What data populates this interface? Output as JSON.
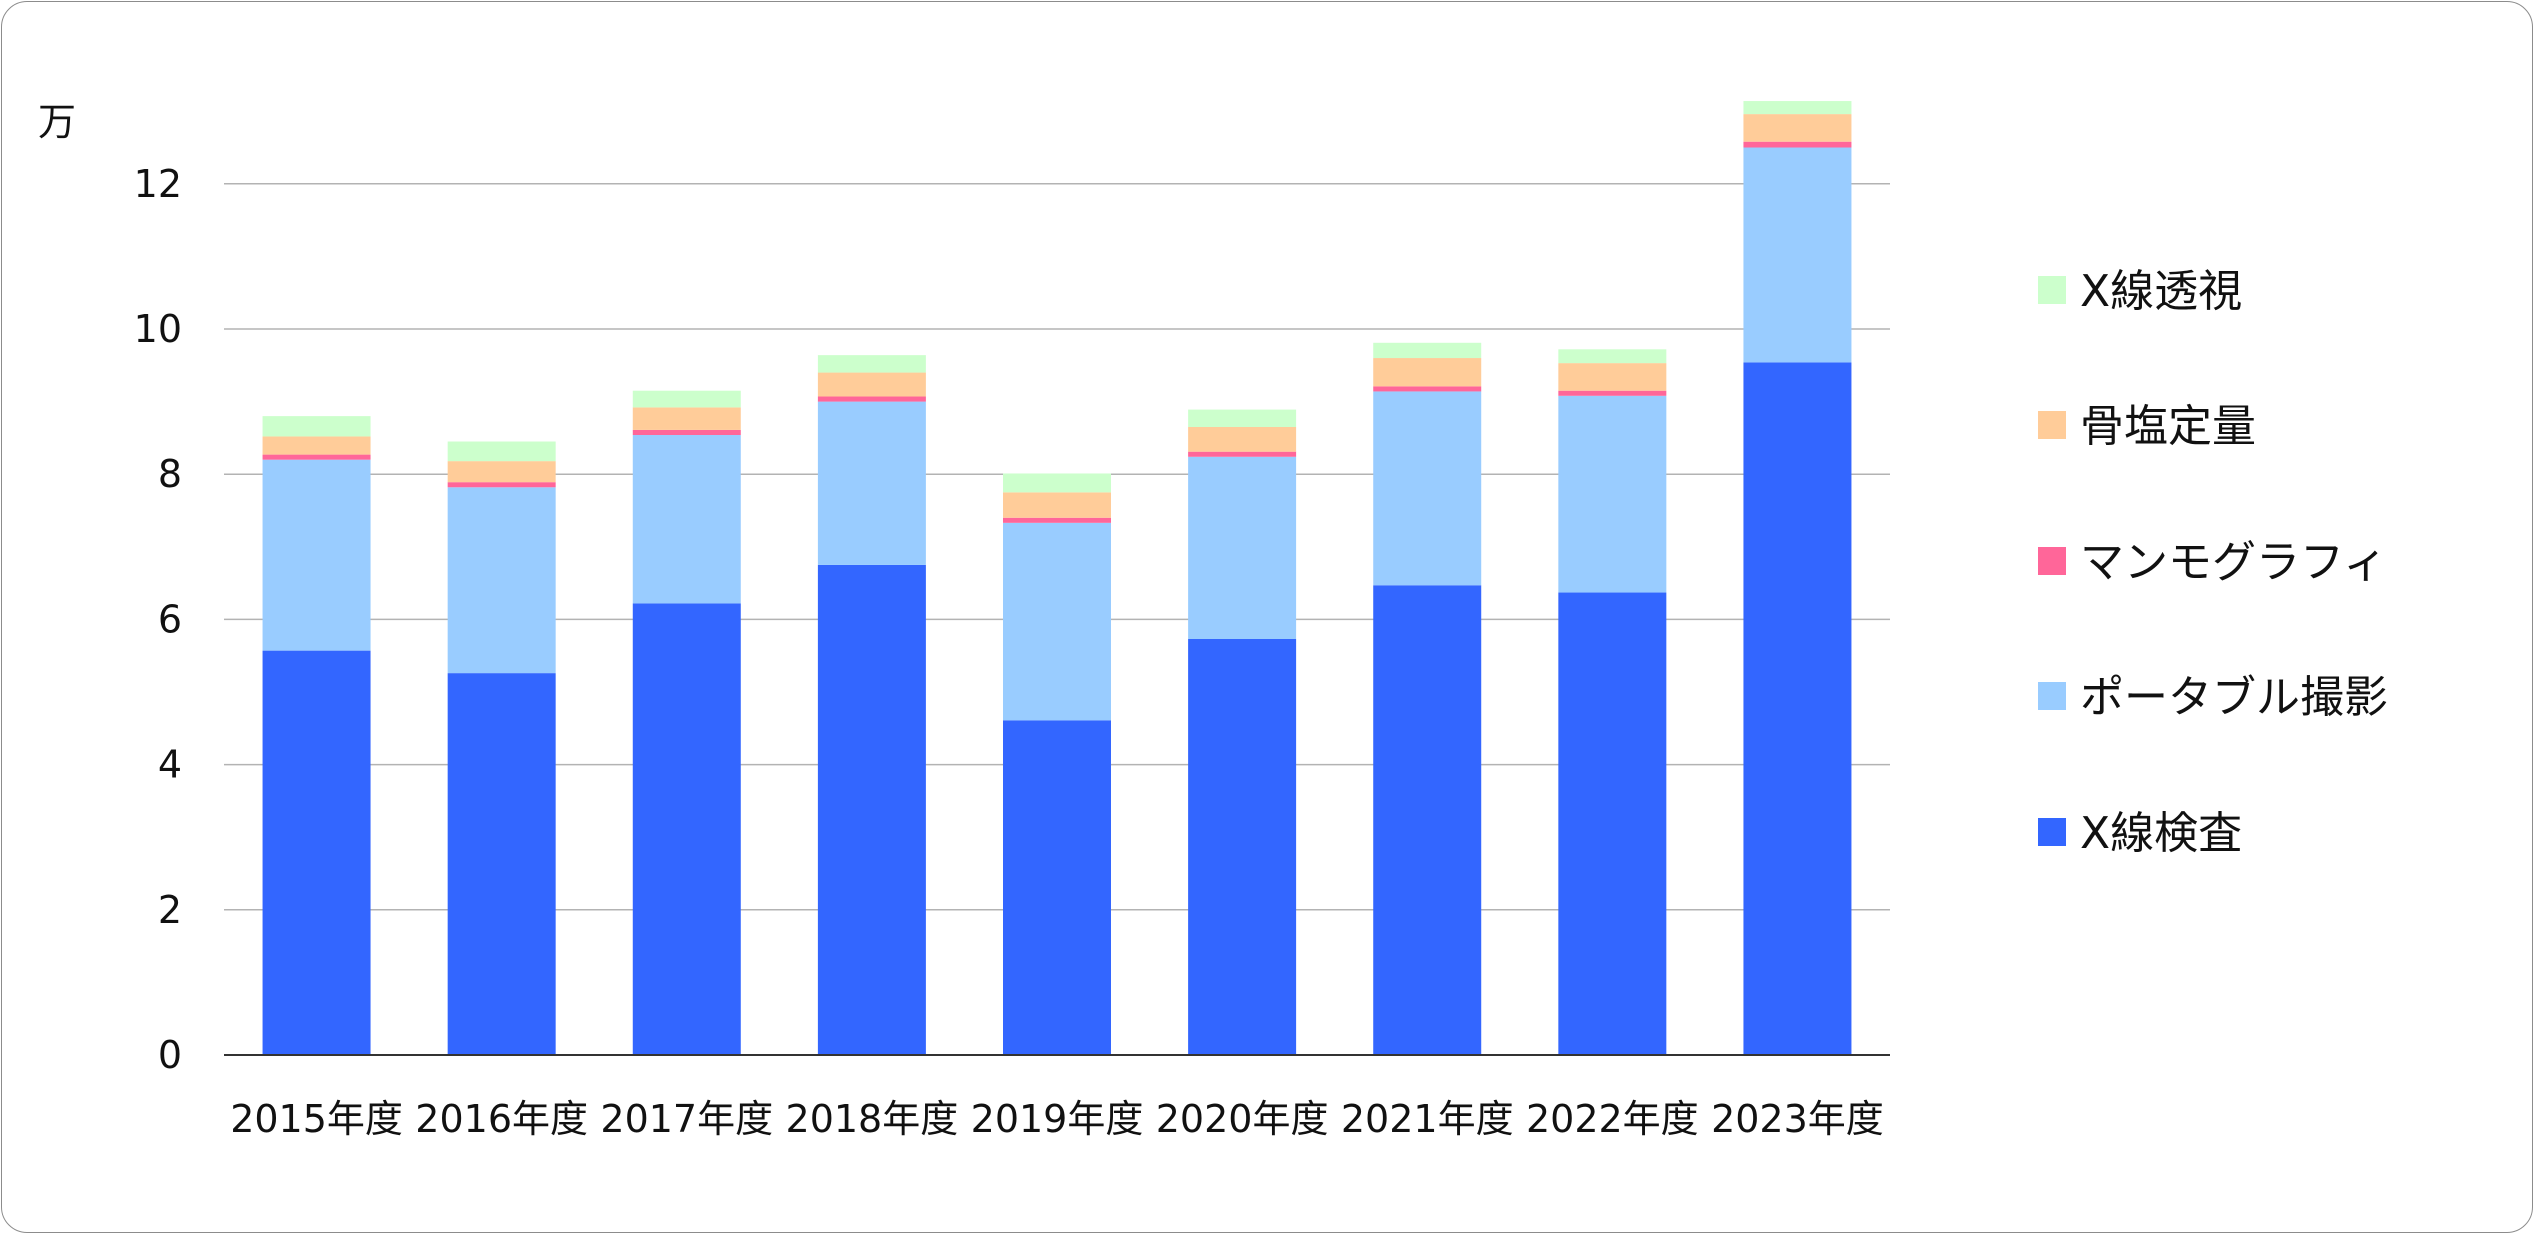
{
  "chart_data": {
    "type": "bar",
    "stacked": true,
    "unit_label": "万",
    "categories": [
      "2015年度",
      "2016年度",
      "2017年度",
      "2018年度",
      "2019年度",
      "2020年度",
      "2021年度",
      "2022年度",
      "2023年度"
    ],
    "series": [
      {
        "name": "X線検査",
        "color": "#3366ff",
        "values": [
          5.57,
          5.26,
          6.22,
          6.75,
          4.61,
          5.73,
          6.47,
          6.37,
          9.54
        ]
      },
      {
        "name": "ポータブル撮影",
        "color": "#99ccff",
        "values": [
          2.63,
          2.56,
          2.32,
          2.25,
          2.72,
          2.51,
          2.67,
          2.71,
          2.96
        ]
      },
      {
        "name": "マンモグラフィ",
        "color": "#ff6699",
        "values": [
          0.07,
          0.07,
          0.07,
          0.07,
          0.07,
          0.07,
          0.07,
          0.07,
          0.08
        ]
      },
      {
        "name": "骨塩定量",
        "color": "#ffcc99",
        "values": [
          0.25,
          0.29,
          0.31,
          0.33,
          0.35,
          0.34,
          0.39,
          0.38,
          0.38
        ]
      },
      {
        "name": "X線透視",
        "color": "#ccffcc",
        "values": [
          0.28,
          0.27,
          0.23,
          0.24,
          0.26,
          0.24,
          0.21,
          0.19,
          0.18
        ]
      }
    ],
    "yticks": [
      "0",
      "2",
      "4",
      "6",
      "8",
      "10",
      "12"
    ],
    "ylim": [
      0,
      13
    ],
    "grid": true,
    "legend_position": "right"
  }
}
